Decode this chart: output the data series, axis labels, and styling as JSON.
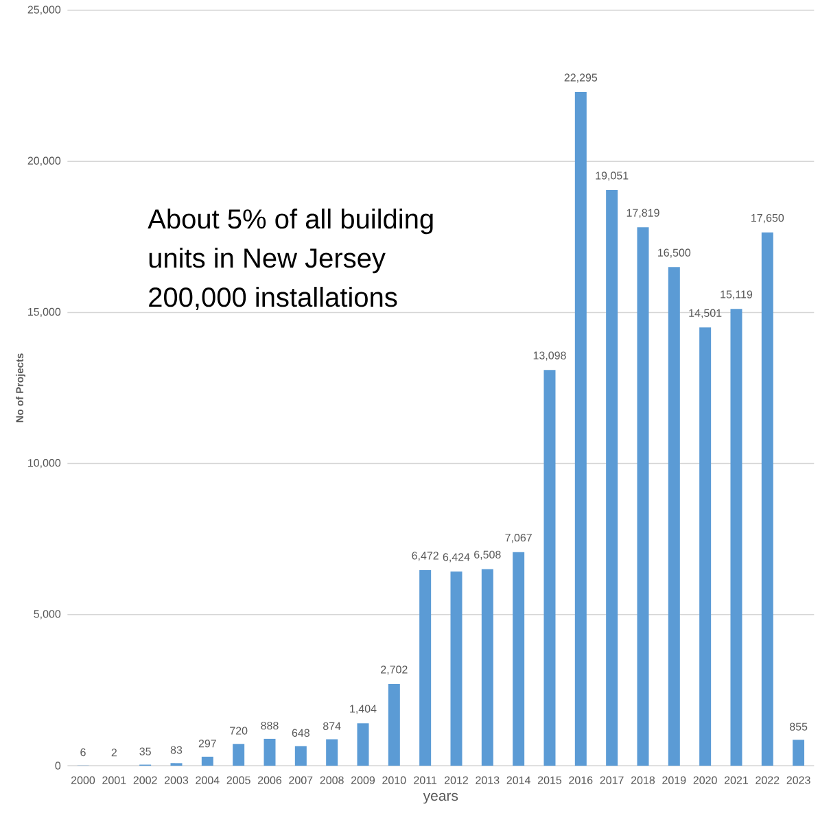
{
  "chart_data": {
    "type": "bar",
    "xlabel": "years",
    "ylabel": "No of Projects",
    "categories": [
      "2000",
      "2001",
      "2002",
      "2003",
      "2004",
      "2005",
      "2006",
      "2007",
      "2008",
      "2009",
      "2010",
      "2011",
      "2012",
      "2013",
      "2014",
      "2015",
      "2016",
      "2017",
      "2018",
      "2019",
      "2020",
      "2021",
      "2022",
      "2023"
    ],
    "values": [
      6,
      2,
      35,
      83,
      297,
      720,
      888,
      648,
      874,
      1404,
      2702,
      6472,
      6424,
      6508,
      7067,
      13098,
      22295,
      19051,
      17819,
      16500,
      14501,
      15119,
      17650,
      855
    ],
    "value_labels": [
      "6",
      "2",
      "35",
      "83",
      "297",
      "720",
      "888",
      "648",
      "874",
      "1,404",
      "2,702",
      "6,472",
      "6,424",
      "6,508",
      "7,067",
      "13,098",
      "22,295",
      "19,051",
      "17,819",
      "16,500",
      "14,501",
      "15,119",
      "17,650",
      "855"
    ],
    "color": "#5b9bd5",
    "ylim": [
      0,
      25000
    ],
    "yticks": [
      0,
      {
        "value": 5000,
        "label": "5,000"
      },
      {
        "value": 10000,
        "label": "10,000"
      },
      {
        "value": 15000,
        "label": "15,000"
      },
      {
        "value": 20000,
        "label": "20,000"
      },
      {
        "value": 25000,
        "label": "25,000"
      }
    ],
    "grid": "y",
    "annotations": [
      "About 5% of all building",
      "units in New Jersey",
      "200,000 installations"
    ]
  }
}
